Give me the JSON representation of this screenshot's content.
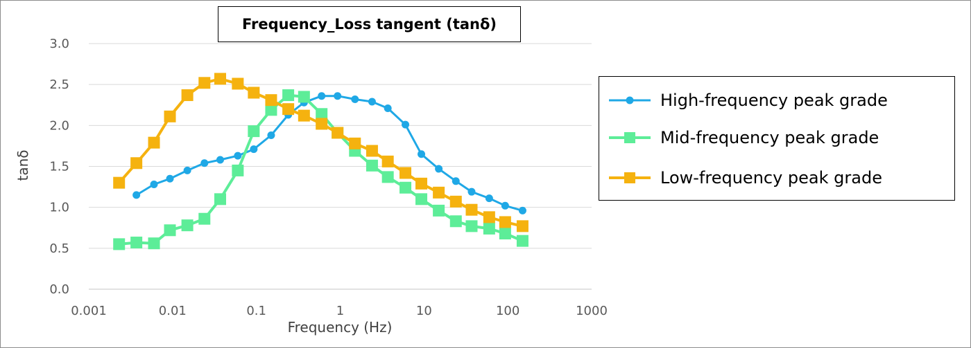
{
  "chart_data": {
    "type": "line",
    "title": "Frequency_Loss tangent (tanδ)",
    "xlabel": "Frequency (Hz)",
    "ylabel": "tanδ",
    "xscale": "log",
    "xlim": [
      0.001,
      1000
    ],
    "ylim": [
      0,
      3.0
    ],
    "x_tick_labels": [
      "0.001",
      "0.01",
      "0.1",
      "1",
      "10",
      "100",
      "1000"
    ],
    "y_tick_labels": [
      "0.0",
      "0.5",
      "1.0",
      "1.5",
      "2.0",
      "2.5",
      "3.0"
    ],
    "grid": "horizontal",
    "legend_position": "right",
    "series": [
      {
        "name": "High-frequency peak grade",
        "color": "#1fa8e6",
        "marker": "circle",
        "x": [
          0.0037,
          0.006,
          0.0093,
          0.015,
          0.024,
          0.037,
          0.06,
          0.093,
          0.15,
          0.24,
          0.37,
          0.6,
          0.93,
          1.5,
          2.4,
          3.7,
          6,
          9.3,
          15,
          24,
          37,
          60,
          93,
          150
        ],
        "y": [
          1.15,
          1.28,
          1.35,
          1.45,
          1.54,
          1.58,
          1.63,
          1.71,
          1.88,
          2.13,
          2.28,
          2.36,
          2.36,
          2.32,
          2.29,
          2.21,
          2.01,
          1.65,
          1.47,
          1.32,
          1.19,
          1.11,
          1.02,
          0.96
        ]
      },
      {
        "name": "Mid-frequency peak grade",
        "color": "#5ded98",
        "marker": "square",
        "x": [
          0.0023,
          0.0037,
          0.006,
          0.0093,
          0.015,
          0.024,
          0.037,
          0.06,
          0.093,
          0.15,
          0.24,
          0.37,
          0.6,
          0.93,
          1.5,
          2.4,
          3.7,
          6,
          9.3,
          15,
          24,
          37,
          60,
          93,
          150
        ],
        "y": [
          0.55,
          0.57,
          0.56,
          0.72,
          0.78,
          0.86,
          1.1,
          1.45,
          1.93,
          2.19,
          2.37,
          2.35,
          2.14,
          1.91,
          1.69,
          1.51,
          1.37,
          1.24,
          1.1,
          0.96,
          0.83,
          0.77,
          0.74,
          0.68,
          0.59
        ]
      },
      {
        "name": "Low-frequency peak grade",
        "color": "#f5b20f",
        "marker": "square",
        "x": [
          0.0023,
          0.0037,
          0.006,
          0.0093,
          0.015,
          0.024,
          0.037,
          0.06,
          0.093,
          0.15,
          0.24,
          0.37,
          0.6,
          0.93,
          1.5,
          2.4,
          3.7,
          6,
          9.3,
          15,
          24,
          37,
          60,
          93,
          150
        ],
        "y": [
          1.3,
          1.54,
          1.79,
          2.11,
          2.37,
          2.52,
          2.57,
          2.51,
          2.4,
          2.31,
          2.2,
          2.12,
          2.02,
          1.91,
          1.78,
          1.69,
          1.56,
          1.42,
          1.29,
          1.18,
          1.07,
          0.97,
          0.88,
          0.82,
          0.77
        ]
      }
    ]
  }
}
